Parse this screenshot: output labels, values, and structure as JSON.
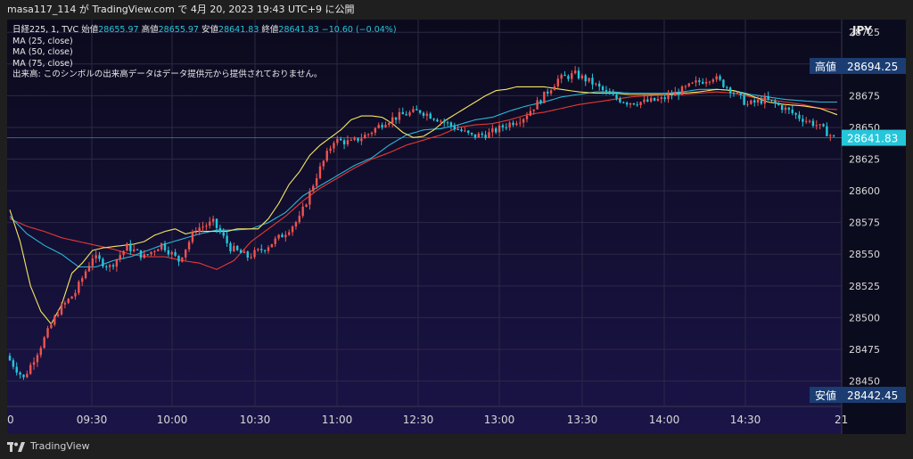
{
  "header": {
    "text": "masa117_114 が TradingView.com で 4月 20, 2023 19:43 UTC+9 に公開"
  },
  "legend": {
    "symbol": "日経225, 1, TVC",
    "open_label": "始値",
    "open": "28655.97",
    "high_label": "高値",
    "high": "28655.97",
    "low_label": "安値",
    "low": "28641.83",
    "close_label": "終値",
    "close": "28641.83",
    "change": "−10.60 (−0.04%)",
    "ma1": "MA (25, close)",
    "ma2": "MA (50, close)",
    "ma3": "MA (75, close)",
    "volume_note": "出来高: このシンボルの出来高データはデータ提供元から提供されておりません。"
  },
  "axis": {
    "currency": "JPY",
    "high_label": "高値",
    "high_value": "28694.25",
    "low_label": "安値",
    "low_value": "28442.45",
    "last_value": "28641.83"
  },
  "footer": {
    "brand": "TradingView"
  },
  "colors": {
    "up": "#ef5350",
    "down": "#26c6da",
    "ma25": "#f5e663",
    "ma50": "#2ab7d6",
    "ma75": "#e53935",
    "last_tag": "#26c6da",
    "label_tag": "#1b3d72"
  },
  "chart_data": {
    "type": "candlestick",
    "ylim": [
      28430,
      28735
    ],
    "yticks": [
      28450,
      28475,
      28500,
      28525,
      28550,
      28575,
      28600,
      28625,
      28650,
      28675,
      28700,
      28725
    ],
    "xticks": [
      "09:30",
      "10:00",
      "10:30",
      "11:00",
      "12:30",
      "13:00",
      "13:30",
      "14:00",
      "14:30"
    ],
    "xedge_labels": [
      "0",
      "21"
    ],
    "price_path": [
      [
        0,
        28470
      ],
      [
        5,
        28452
      ],
      [
        10,
        28478
      ],
      [
        15,
        28505
      ],
      [
        20,
        28520
      ],
      [
        25,
        28548
      ],
      [
        30,
        28540
      ],
      [
        35,
        28556
      ],
      [
        40,
        28548
      ],
      [
        45,
        28558
      ],
      [
        50,
        28545
      ],
      [
        55,
        28570
      ],
      [
        60,
        28575
      ],
      [
        65,
        28555
      ],
      [
        70,
        28548
      ],
      [
        75,
        28555
      ],
      [
        80,
        28565
      ],
      [
        85,
        28578
      ],
      [
        90,
        28612
      ],
      [
        95,
        28640
      ],
      [
        100,
        28638
      ],
      [
        105,
        28645
      ],
      [
        110,
        28655
      ],
      [
        115,
        28660
      ],
      [
        120,
        28663
      ],
      [
        125,
        28657
      ],
      [
        130,
        28650
      ],
      [
        135,
        28643
      ],
      [
        140,
        28645
      ],
      [
        145,
        28652
      ],
      [
        150,
        28658
      ],
      [
        155,
        28672
      ],
      [
        160,
        28688
      ],
      [
        165,
        28692
      ],
      [
        170,
        28685
      ],
      [
        175,
        28675
      ],
      [
        180,
        28670
      ],
      [
        185,
        28670
      ],
      [
        190,
        28672
      ],
      [
        195,
        28678
      ],
      [
        200,
        28685
      ],
      [
        205,
        28690
      ],
      [
        210,
        28680
      ],
      [
        215,
        28668
      ],
      [
        220,
        28672
      ],
      [
        225,
        28666
      ],
      [
        230,
        28658
      ],
      [
        235,
        28652
      ],
      [
        240,
        28642
      ]
    ],
    "ma_paths": {
      "ma25": [
        [
          0,
          28585
        ],
        [
          3,
          28560
        ],
        [
          6,
          28525
        ],
        [
          9,
          28505
        ],
        [
          12,
          28495
        ],
        [
          15,
          28510
        ],
        [
          18,
          28535
        ],
        [
          21,
          28543
        ],
        [
          24,
          28553
        ],
        [
          27,
          28555
        ],
        [
          30,
          28556
        ],
        [
          33,
          28557
        ],
        [
          36,
          28558
        ],
        [
          39,
          28560
        ],
        [
          42,
          28565
        ],
        [
          45,
          28568
        ],
        [
          48,
          28570
        ],
        [
          51,
          28566
        ],
        [
          54,
          28568
        ],
        [
          57,
          28568
        ],
        [
          60,
          28568
        ],
        [
          63,
          28568
        ],
        [
          66,
          28570
        ],
        [
          69,
          28570
        ],
        [
          72,
          28570
        ],
        [
          75,
          28578
        ],
        [
          78,
          28590
        ],
        [
          81,
          28605
        ],
        [
          84,
          28615
        ],
        [
          87,
          28628
        ],
        [
          90,
          28636
        ],
        [
          93,
          28642
        ],
        [
          96,
          28648
        ],
        [
          99,
          28656
        ],
        [
          102,
          28659
        ],
        [
          105,
          28659
        ],
        [
          108,
          28658
        ],
        [
          111,
          28653
        ],
        [
          114,
          28646
        ],
        [
          117,
          28642
        ],
        [
          120,
          28643
        ],
        [
          123,
          28648
        ],
        [
          126,
          28655
        ],
        [
          129,
          28660
        ],
        [
          132,
          28665
        ],
        [
          135,
          28670
        ],
        [
          138,
          28675
        ],
        [
          141,
          28679
        ],
        [
          144,
          28680
        ],
        [
          147,
          28682
        ],
        [
          150,
          28682
        ],
        [
          155,
          28682
        ],
        [
          160,
          28680
        ],
        [
          165,
          28678
        ],
        [
          170,
          28677
        ],
        [
          175,
          28677
        ],
        [
          180,
          28676
        ],
        [
          185,
          28676
        ],
        [
          190,
          28676
        ],
        [
          195,
          28677
        ],
        [
          200,
          28678
        ],
        [
          205,
          28680
        ],
        [
          210,
          28679
        ],
        [
          215,
          28675
        ],
        [
          220,
          28670
        ],
        [
          225,
          28668
        ],
        [
          230,
          28667
        ],
        [
          235,
          28665
        ],
        [
          240,
          28660
        ]
      ],
      "ma50": [
        [
          0,
          28580
        ],
        [
          5,
          28566
        ],
        [
          10,
          28557
        ],
        [
          15,
          28550
        ],
        [
          20,
          28540
        ],
        [
          25,
          28540
        ],
        [
          30,
          28545
        ],
        [
          35,
          28548
        ],
        [
          40,
          28553
        ],
        [
          45,
          28558
        ],
        [
          50,
          28562
        ],
        [
          55,
          28566
        ],
        [
          60,
          28569
        ],
        [
          65,
          28569
        ],
        [
          70,
          28570
        ],
        [
          75,
          28575
        ],
        [
          80,
          28583
        ],
        [
          85,
          28596
        ],
        [
          90,
          28604
        ],
        [
          95,
          28612
        ],
        [
          100,
          28620
        ],
        [
          105,
          28626
        ],
        [
          110,
          28636
        ],
        [
          115,
          28644
        ],
        [
          120,
          28648
        ],
        [
          125,
          28649
        ],
        [
          130,
          28652
        ],
        [
          135,
          28656
        ],
        [
          140,
          28658
        ],
        [
          145,
          28663
        ],
        [
          150,
          28667
        ],
        [
          155,
          28670
        ],
        [
          160,
          28674
        ],
        [
          165,
          28676
        ],
        [
          170,
          28678
        ],
        [
          175,
          28678
        ],
        [
          180,
          28677
        ],
        [
          185,
          28677
        ],
        [
          190,
          28677
        ],
        [
          195,
          28678
        ],
        [
          200,
          28680
        ],
        [
          205,
          28680
        ],
        [
          210,
          28679
        ],
        [
          215,
          28676
        ],
        [
          220,
          28674
        ],
        [
          225,
          28672
        ],
        [
          230,
          28671
        ],
        [
          235,
          28670
        ],
        [
          240,
          28670
        ]
      ],
      "ma75": [
        [
          0,
          28578
        ],
        [
          5,
          28572
        ],
        [
          10,
          28568
        ],
        [
          15,
          28563
        ],
        [
          20,
          28560
        ],
        [
          25,
          28557
        ],
        [
          30,
          28554
        ],
        [
          35,
          28550
        ],
        [
          40,
          28548
        ],
        [
          45,
          28548
        ],
        [
          50,
          28545
        ],
        [
          55,
          28543
        ],
        [
          60,
          28538
        ],
        [
          65,
          28545
        ],
        [
          70,
          28560
        ],
        [
          75,
          28570
        ],
        [
          80,
          28580
        ],
        [
          85,
          28592
        ],
        [
          90,
          28602
        ],
        [
          95,
          28610
        ],
        [
          100,
          28618
        ],
        [
          105,
          28625
        ],
        [
          110,
          28630
        ],
        [
          115,
          28636
        ],
        [
          120,
          28640
        ],
        [
          125,
          28644
        ],
        [
          130,
          28650
        ],
        [
          135,
          28652
        ],
        [
          140,
          28653
        ],
        [
          145,
          28656
        ],
        [
          150,
          28660
        ],
        [
          155,
          28662
        ],
        [
          160,
          28665
        ],
        [
          165,
          28668
        ],
        [
          170,
          28670
        ],
        [
          175,
          28672
        ],
        [
          180,
          28674
        ],
        [
          185,
          28675
        ],
        [
          190,
          28676
        ],
        [
          195,
          28676
        ],
        [
          200,
          28677
        ],
        [
          205,
          28678
        ],
        [
          210,
          28677
        ],
        [
          215,
          28674
        ],
        [
          220,
          28672
        ],
        [
          225,
          28670
        ],
        [
          230,
          28668
        ],
        [
          235,
          28665
        ],
        [
          240,
          28664
        ]
      ]
    },
    "n_candles": 240
  }
}
